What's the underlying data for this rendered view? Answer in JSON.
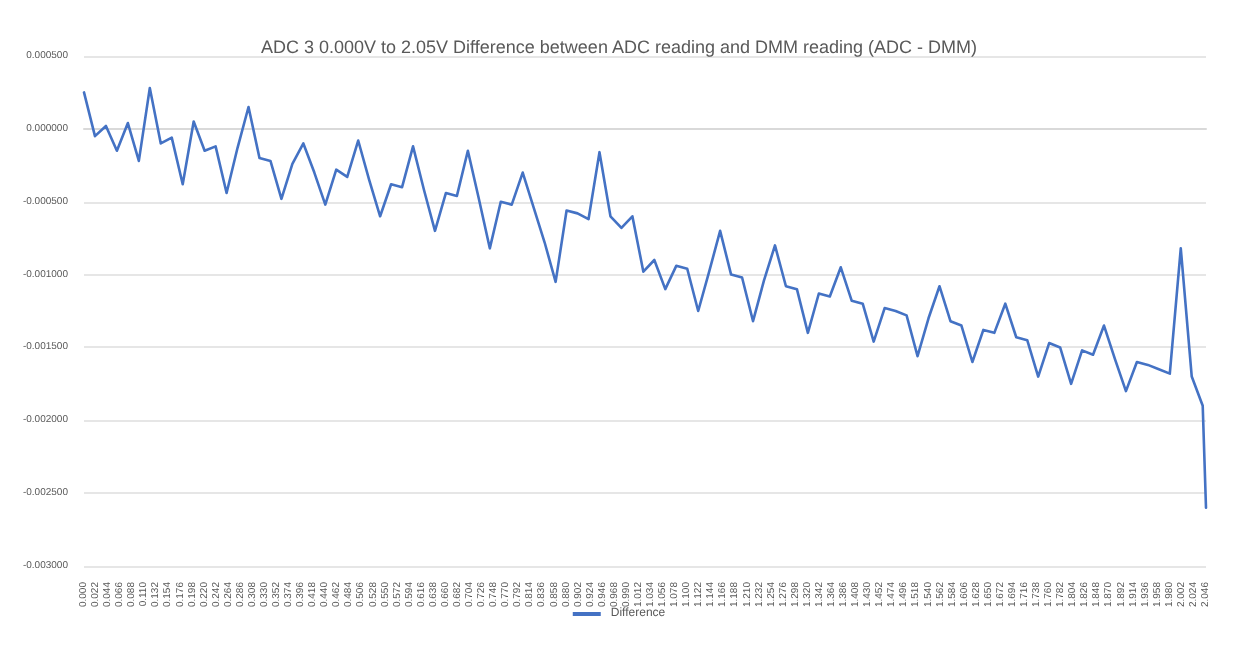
{
  "chart_data": {
    "type": "line",
    "title": "ADC 3 0.000V to 2.05V Difference between ADC reading and DMM reading (ADC - DMM)",
    "xlim": [
      0,
      2.046
    ],
    "xticks": [
      {
        "value": 0,
        "label": "0.000"
      },
      {
        "value": 0.022,
        "label": "0.022"
      },
      {
        "value": 0.044,
        "label": "0.044"
      },
      {
        "value": 0.066,
        "label": "0.066"
      },
      {
        "value": 0.088,
        "label": "0.088"
      },
      {
        "value": 0.11,
        "label": "0.110"
      },
      {
        "value": 0.132,
        "label": "0.132"
      },
      {
        "value": 0.154,
        "label": "0.154"
      },
      {
        "value": 0.176,
        "label": "0.176"
      },
      {
        "value": 0.198,
        "label": "0.198"
      },
      {
        "value": 0.22,
        "label": "0.220"
      },
      {
        "value": 0.242,
        "label": "0.242"
      },
      {
        "value": 0.264,
        "label": "0.264"
      },
      {
        "value": 0.286,
        "label": "0.286"
      },
      {
        "value": 0.308,
        "label": "0.308"
      },
      {
        "value": 0.33,
        "label": "0.330"
      },
      {
        "value": 0.352,
        "label": "0.352"
      },
      {
        "value": 0.374,
        "label": "0.374"
      },
      {
        "value": 0.396,
        "label": "0.396"
      },
      {
        "value": 0.418,
        "label": "0.418"
      },
      {
        "value": 0.44,
        "label": "0.440"
      },
      {
        "value": 0.462,
        "label": "0.462"
      },
      {
        "value": 0.484,
        "label": "0.484"
      },
      {
        "value": 0.506,
        "label": "0.506"
      },
      {
        "value": 0.528,
        "label": "0.528"
      },
      {
        "value": 0.55,
        "label": "0.550"
      },
      {
        "value": 0.572,
        "label": "0.572"
      },
      {
        "value": 0.594,
        "label": "0.594"
      },
      {
        "value": 0.616,
        "label": "0.616"
      },
      {
        "value": 0.638,
        "label": "0.638"
      },
      {
        "value": 0.66,
        "label": "0.660"
      },
      {
        "value": 0.682,
        "label": "0.682"
      },
      {
        "value": 0.704,
        "label": "0.704"
      },
      {
        "value": 0.726,
        "label": "0.726"
      },
      {
        "value": 0.748,
        "label": "0.748"
      },
      {
        "value": 0.77,
        "label": "0.770"
      },
      {
        "value": 0.792,
        "label": "0.792"
      },
      {
        "value": 0.814,
        "label": "0.814"
      },
      {
        "value": 0.836,
        "label": "0.836"
      },
      {
        "value": 0.858,
        "label": "0.858"
      },
      {
        "value": 0.88,
        "label": "0.880"
      },
      {
        "value": 0.902,
        "label": "0.902"
      },
      {
        "value": 0.924,
        "label": "0.924"
      },
      {
        "value": 0.946,
        "label": "0.946"
      },
      {
        "value": 0.968,
        "label": "0.968"
      },
      {
        "value": 0.99,
        "label": "0.990"
      },
      {
        "value": 1.012,
        "label": "1.012"
      },
      {
        "value": 1.034,
        "label": "1.034"
      },
      {
        "value": 1.056,
        "label": "1.056"
      },
      {
        "value": 1.078,
        "label": "1.078"
      },
      {
        "value": 1.1,
        "label": "1.100"
      },
      {
        "value": 1.122,
        "label": "1.122"
      },
      {
        "value": 1.144,
        "label": "1.144"
      },
      {
        "value": 1.166,
        "label": "1.166"
      },
      {
        "value": 1.188,
        "label": "1.188"
      },
      {
        "value": 1.21,
        "label": "1.210"
      },
      {
        "value": 1.232,
        "label": "1.232"
      },
      {
        "value": 1.254,
        "label": "1.254"
      },
      {
        "value": 1.276,
        "label": "1.276"
      },
      {
        "value": 1.298,
        "label": "1.298"
      },
      {
        "value": 1.32,
        "label": "1.320"
      },
      {
        "value": 1.342,
        "label": "1.342"
      },
      {
        "value": 1.364,
        "label": "1.364"
      },
      {
        "value": 1.386,
        "label": "1.386"
      },
      {
        "value": 1.408,
        "label": "1.408"
      },
      {
        "value": 1.43,
        "label": "1.430"
      },
      {
        "value": 1.452,
        "label": "1.452"
      },
      {
        "value": 1.474,
        "label": "1.474"
      },
      {
        "value": 1.496,
        "label": "1.496"
      },
      {
        "value": 1.518,
        "label": "1.518"
      },
      {
        "value": 1.54,
        "label": "1.540"
      },
      {
        "value": 1.562,
        "label": "1.562"
      },
      {
        "value": 1.584,
        "label": "1.584"
      },
      {
        "value": 1.606,
        "label": "1.606"
      },
      {
        "value": 1.628,
        "label": "1.628"
      },
      {
        "value": 1.65,
        "label": "1.650"
      },
      {
        "value": 1.672,
        "label": "1.672"
      },
      {
        "value": 1.694,
        "label": "1.694"
      },
      {
        "value": 1.716,
        "label": "1.716"
      },
      {
        "value": 1.738,
        "label": "1.738"
      },
      {
        "value": 1.76,
        "label": "1.760"
      },
      {
        "value": 1.782,
        "label": "1.782"
      },
      {
        "value": 1.804,
        "label": "1.804"
      },
      {
        "value": 1.826,
        "label": "1.826"
      },
      {
        "value": 1.848,
        "label": "1.848"
      },
      {
        "value": 1.87,
        "label": "1.870"
      },
      {
        "value": 1.892,
        "label": "1.892"
      },
      {
        "value": 1.914,
        "label": "1.914"
      },
      {
        "value": 1.936,
        "label": "1.936"
      },
      {
        "value": 1.958,
        "label": "1.958"
      },
      {
        "value": 1.98,
        "label": "1.980"
      },
      {
        "value": 2.002,
        "label": "2.002"
      },
      {
        "value": 2.024,
        "label": "2.024"
      },
      {
        "value": 2.046,
        "label": "2.046"
      }
    ],
    "ylim": [
      -0.003,
      0.0005
    ],
    "yticks": [
      {
        "value": -0.003,
        "label": "-0.003000"
      },
      {
        "value": -0.0025,
        "label": "-0.002500"
      },
      {
        "value": -0.002,
        "label": "-0.002000"
      },
      {
        "value": -0.0015,
        "label": "-0.001500"
      },
      {
        "value": -0.001,
        "label": "-0.001000"
      },
      {
        "value": -0.0005,
        "label": "-0.000500"
      },
      {
        "value": 0,
        "label": "0.000000"
      },
      {
        "value": 0.0005,
        "label": "0.000500"
      }
    ],
    "grid": "y",
    "legend": "bottom",
    "marker": "none",
    "line_style": "solid",
    "series": [
      {
        "name": "Difference",
        "color": "#4472c4",
        "x": [
          0,
          0.02,
          0.04,
          0.06,
          0.08,
          0.1,
          0.12,
          0.14,
          0.16,
          0.18,
          0.2,
          0.22,
          0.24,
          0.26,
          0.28,
          0.3,
          0.32,
          0.34,
          0.36,
          0.38,
          0.4,
          0.42,
          0.44,
          0.46,
          0.48,
          0.5,
          0.52,
          0.54,
          0.56,
          0.58,
          0.6,
          0.62,
          0.64,
          0.66,
          0.68,
          0.7,
          0.72,
          0.74,
          0.76,
          0.78,
          0.8,
          0.82,
          0.84,
          0.86,
          0.88,
          0.9,
          0.92,
          0.94,
          0.96,
          0.98,
          1,
          1.02,
          1.04,
          1.06,
          1.08,
          1.1,
          1.12,
          1.14,
          1.16,
          1.18,
          1.2,
          1.22,
          1.24,
          1.26,
          1.28,
          1.3,
          1.32,
          1.34,
          1.36,
          1.38,
          1.4,
          1.42,
          1.44,
          1.46,
          1.48,
          1.5,
          1.52,
          1.54,
          1.56,
          1.58,
          1.6,
          1.62,
          1.64,
          1.66,
          1.68,
          1.7,
          1.72,
          1.74,
          1.76,
          1.78,
          1.8,
          1.82,
          1.84,
          1.86,
          1.88,
          1.9,
          1.92,
          1.94,
          1.96,
          1.98,
          2,
          2.02,
          2.04,
          2.046
        ],
        "values": [
          0.00025,
          -5e-05,
          2e-05,
          -0.00015,
          4e-05,
          -0.00022,
          0.00028,
          -0.0001,
          -6e-05,
          -0.00038,
          5e-05,
          -0.00015,
          -0.00012,
          -0.00044,
          -0.00013,
          0.00015,
          -0.0002,
          -0.00022,
          -0.00048,
          -0.00024,
          -0.0001,
          -0.0003,
          -0.00052,
          -0.00028,
          -0.00033,
          -8e-05,
          -0.00035,
          -0.0006,
          -0.00038,
          -0.0004,
          -0.00012,
          -0.00042,
          -0.0007,
          -0.00044,
          -0.00046,
          -0.00015,
          -0.00048,
          -0.00082,
          -0.0005,
          -0.00052,
          -0.0003,
          -0.00054,
          -0.00078,
          -0.00105,
          -0.00056,
          -0.00058,
          -0.00062,
          -0.00016,
          -0.0006,
          -0.00068,
          -0.0006,
          -0.00098,
          -0.0009,
          -0.0011,
          -0.00094,
          -0.00096,
          -0.00125,
          -0.00098,
          -0.0007,
          -0.001,
          -0.00102,
          -0.00132,
          -0.00104,
          -0.0008,
          -0.00108,
          -0.0011,
          -0.0014,
          -0.00113,
          -0.00115,
          -0.00095,
          -0.00118,
          -0.0012,
          -0.00146,
          -0.00123,
          -0.00125,
          -0.00128,
          -0.00156,
          -0.0013,
          -0.00108,
          -0.00132,
          -0.00135,
          -0.0016,
          -0.00138,
          -0.0014,
          -0.0012,
          -0.00143,
          -0.00145,
          -0.0017,
          -0.00147,
          -0.0015,
          -0.00175,
          -0.00152,
          -0.00155,
          -0.00135,
          -0.00158,
          -0.0018,
          -0.0016,
          -0.00162,
          -0.00165,
          -0.00168,
          -0.00082,
          -0.0017,
          -0.0019,
          -0.0026
        ]
      }
    ]
  }
}
